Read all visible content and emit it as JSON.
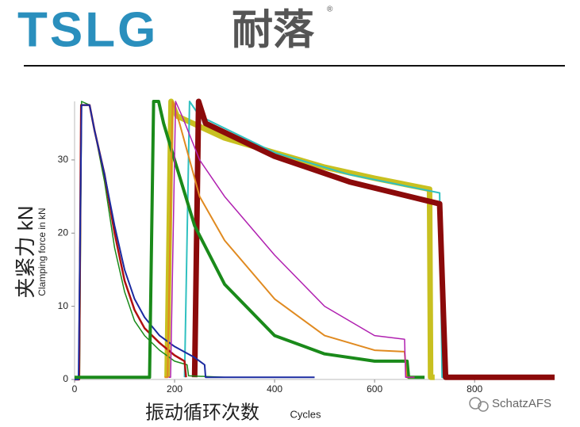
{
  "header": {
    "brand": "TSLG",
    "brand_cn": "耐落",
    "mark": "®"
  },
  "watermark": "SchatzAFS",
  "chart_data": {
    "type": "line",
    "y_label": "夹紧力 kN",
    "y_label_en": "Clamping force in kN",
    "x_label": "振动循环次数",
    "x_label_en": "Cycles",
    "xlim": [
      0,
      960
    ],
    "ylim": [
      0,
      38
    ],
    "xticks": [
      0,
      200,
      400,
      600,
      800
    ],
    "yticks": [
      0,
      10,
      20,
      30
    ],
    "series": [
      {
        "color": "#c8c020",
        "line_width": 7,
        "x": [
          185,
          193,
          205,
          300,
          400,
          500,
          600,
          710,
          712,
          720
        ],
        "values": [
          0.3,
          38,
          36,
          33,
          31,
          29,
          27.5,
          26,
          0.3,
          0.3
        ]
      },
      {
        "color": "#30c0c0",
        "line_width": 2,
        "x": [
          220,
          230,
          250,
          400,
          550,
          730,
          735,
          760
        ],
        "values": [
          0.3,
          38,
          36,
          31,
          28,
          25.5,
          0.3,
          0.3
        ]
      },
      {
        "color": "#8b0a0a",
        "line_width": 7,
        "x": [
          240,
          248,
          262,
          400,
          550,
          730,
          742,
          960
        ],
        "values": [
          0.3,
          38,
          35,
          30.5,
          27,
          24,
          0.3,
          0.3
        ]
      },
      {
        "color": "#1a8a1a",
        "line_width": 1.5,
        "x": [
          0,
          10,
          14,
          30,
          40,
          60,
          80,
          100,
          120,
          140,
          170,
          200,
          225,
          228,
          300
        ],
        "values": [
          0.3,
          0,
          38,
          37.5,
          34,
          27,
          18,
          12,
          8,
          6,
          4,
          2.5,
          2,
          0.5,
          0.3
        ]
      },
      {
        "color": "#b01010",
        "line_width": 2.5,
        "x": [
          0,
          9,
          13,
          30,
          40,
          60,
          80,
          100,
          120,
          140,
          170,
          200,
          220,
          223
        ],
        "values": [
          0,
          0,
          37.5,
          37.5,
          34,
          28,
          20,
          13.5,
          9.5,
          7,
          5,
          3.3,
          2.5,
          0.3
        ]
      },
      {
        "color": "#1a2aa0",
        "line_width": 2,
        "x": [
          0,
          8,
          14,
          30,
          40,
          60,
          80,
          100,
          120,
          140,
          170,
          200,
          240,
          260,
          262,
          480
        ],
        "values": [
          0,
          0,
          37.5,
          37.5,
          34,
          28,
          21,
          15,
          11,
          8.5,
          6,
          4.5,
          3,
          2,
          0.3,
          0.3
        ]
      },
      {
        "color": "#1a8a1a",
        "line_width": 4,
        "x": [
          0,
          150,
          158,
          168,
          178,
          200,
          240,
          300,
          400,
          500,
          600,
          665,
          668,
          700
        ],
        "values": [
          0.3,
          0.3,
          38,
          38,
          35,
          30,
          21,
          13,
          6,
          3.5,
          2.5,
          2.5,
          0.3,
          0.3
        ]
      },
      {
        "color": "#e08a20",
        "line_width": 2,
        "x": [
          180,
          186,
          196,
          210,
          250,
          300,
          400,
          500,
          600,
          660,
          664,
          680
        ],
        "values": [
          0.3,
          0.3,
          38,
          35,
          25,
          19,
          11,
          6,
          4,
          3.8,
          0.3,
          0.3
        ]
      },
      {
        "color": "#b020b0",
        "line_width": 1.5,
        "x": [
          188,
          192,
          202,
          215,
          250,
          300,
          400,
          500,
          600,
          660,
          662,
          680
        ],
        "values": [
          0.3,
          0.3,
          38,
          36,
          30,
          25,
          17,
          10,
          6,
          5.5,
          0.3,
          0.3
        ]
      }
    ]
  }
}
